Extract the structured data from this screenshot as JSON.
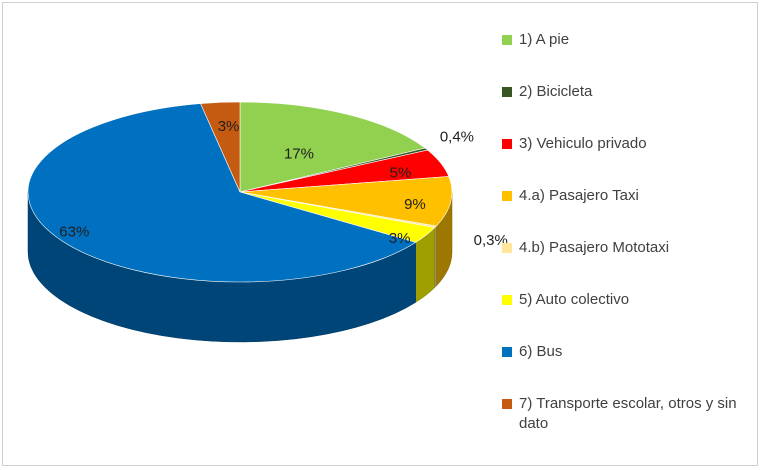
{
  "chart_data": {
    "type": "pie",
    "title": "",
    "categories": [
      "1) A pie",
      "2) Bicicleta",
      "3) Vehiculo privado",
      "4.a) Pasajero Taxi",
      "4.b) Pasajero Mototaxi",
      "5) Auto colectivo",
      "6) Bus",
      "7) Transporte escolar, otros y sin dato"
    ],
    "values": [
      17,
      0.4,
      5,
      9,
      0.3,
      3,
      63,
      3
    ],
    "data_labels": [
      "17%",
      "0,4%",
      "5%",
      "9%",
      "0,3%",
      "3%",
      "63%",
      "3%"
    ],
    "colors": [
      "#92d050",
      "#375623",
      "#ff0000",
      "#ffc000",
      "#ffe699",
      "#ffff00",
      "#0070c0",
      "#c55a11"
    ],
    "legend_position": "right",
    "style": "3d"
  }
}
